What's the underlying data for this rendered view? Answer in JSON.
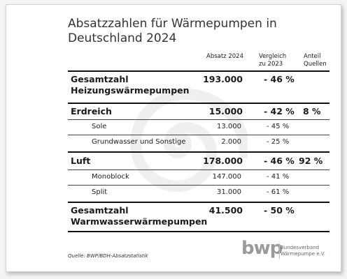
{
  "title": "Absatzzahlen für Wärmepumpen in Deutschland 2024",
  "columns": {
    "absatz": "Absatz 2024",
    "vergleich": "Vergleich zu 2023",
    "anteil": "Anteil Quellen"
  },
  "rows": {
    "gesamt_heizung": {
      "label": "Gesamtzahl Heizungswärmepumpen",
      "absatz": "193.000",
      "vergleich": "- 46 %"
    },
    "erdreich": {
      "label": "Erdreich",
      "absatz": "15.000",
      "vergleich": "- 42 %",
      "anteil": "8 %"
    },
    "sole": {
      "label": "Sole",
      "absatz": "13.000",
      "vergleich": "- 45 %"
    },
    "grundwasser": {
      "label": "Grundwasser und Sonstige",
      "absatz": "2.000",
      "vergleich": "- 25 %"
    },
    "luft": {
      "label": "Luft",
      "absatz": "178.000",
      "vergleich": "- 46 %",
      "anteil": "92 %"
    },
    "monoblock": {
      "label": "Monoblock",
      "absatz": "147.000",
      "vergleich": "- 41 %"
    },
    "split": {
      "label": "Split",
      "absatz": "31.000",
      "vergleich": "- 61 %"
    },
    "gesamt_warmwasser": {
      "label": "Gesamtzahl Warmwasserwärmepumpen",
      "absatz": "41.500",
      "vergleich": "- 50 %"
    }
  },
  "footer": {
    "source": "Quelle: BWP/BDH-Absatzstatistik"
  },
  "logo": {
    "word": "bwp",
    "org": "Bundesverband Wärmepumpe e.V."
  },
  "colors": {
    "text": "#1a1a1a",
    "watermark": "#eeeeee",
    "logo": "#9a9a9a"
  }
}
